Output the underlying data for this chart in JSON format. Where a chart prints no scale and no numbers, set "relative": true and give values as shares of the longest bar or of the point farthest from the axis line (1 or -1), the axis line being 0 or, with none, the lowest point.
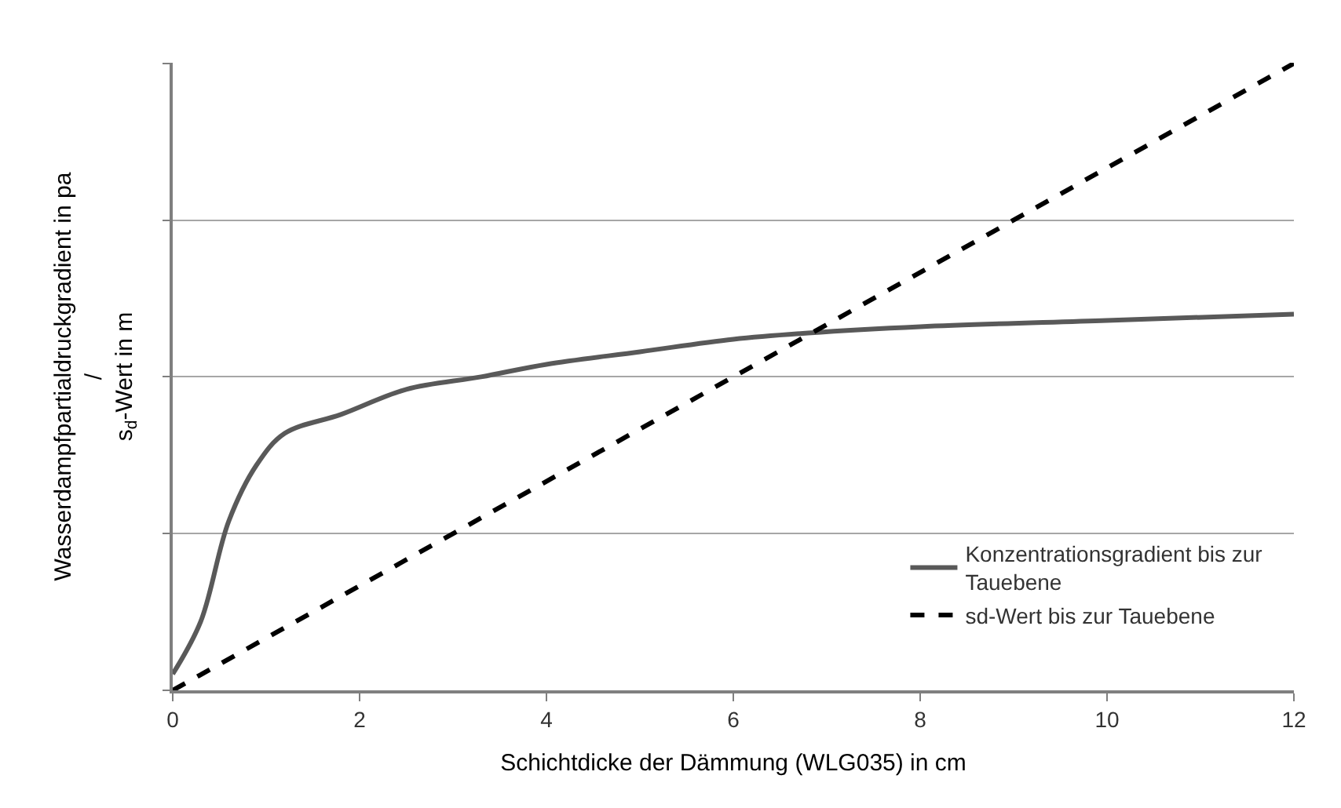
{
  "chart_data": {
    "type": "line",
    "relative": true,
    "xlabel": "Schichtdicke der Dämmung (WLG035) in cm",
    "ylabel": "Wasserdampfpartialdruckgradient in pa\n/\ns$_{d}$-Wert in m",
    "xlim": [
      0,
      12
    ],
    "xticks": [
      0,
      2,
      4,
      6,
      8,
      10,
      12
    ],
    "grid": "y",
    "legend": "bottom right",
    "marker": "none",
    "series": [
      {
        "name": "Konzentrationsgradient bis zur Tauebene",
        "color": "#595959",
        "line_style": "solid",
        "x": [
          0,
          0.3,
          0.6,
          0.9,
          1.2,
          1.8,
          2.5,
          3.3,
          4,
          5,
          6,
          6.8,
          8,
          10,
          12
        ],
        "values": [
          0.026,
          0.11,
          0.27,
          0.36,
          0.41,
          0.44,
          0.48,
          0.5,
          0.52,
          0.54,
          0.56,
          0.57,
          0.58,
          0.59,
          0.6
        ]
      },
      {
        "name": "sd-Wert bis zur Tauebene",
        "color": "#000000",
        "line_style": "dashed",
        "x": [
          0,
          12
        ],
        "values": [
          0,
          1
        ]
      }
    ]
  }
}
